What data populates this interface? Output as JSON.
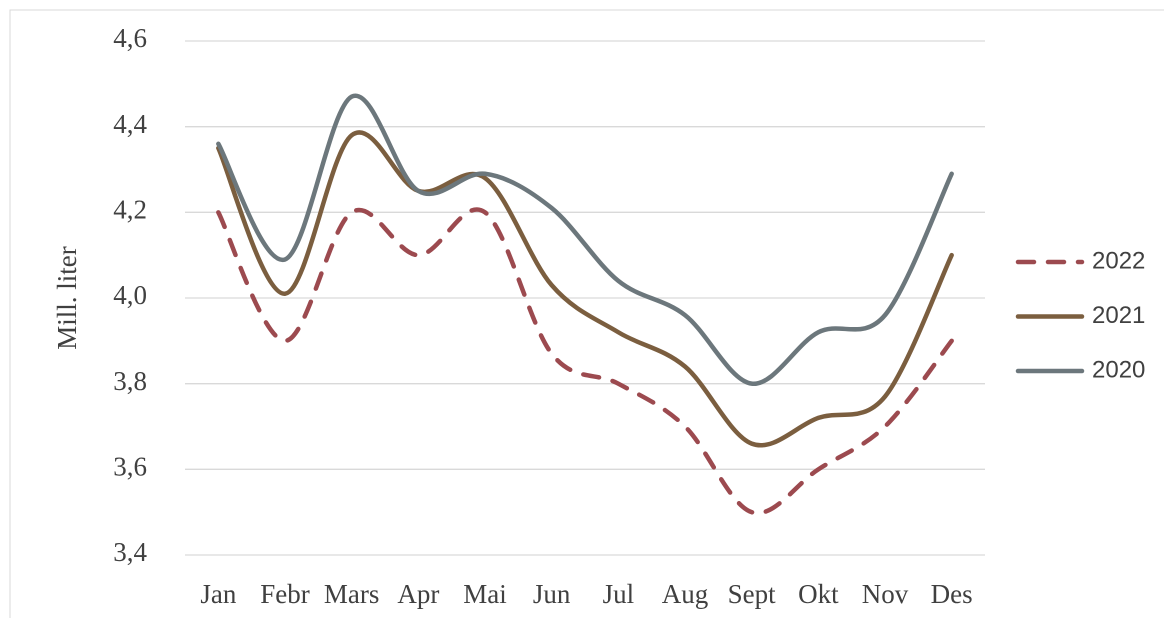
{
  "chart_data": {
    "type": "line",
    "y_label": "Mill. liter",
    "categories": [
      "Jan",
      "Febr",
      "Mars",
      "Apr",
      "Mai",
      "Jun",
      "Jul",
      "Aug",
      "Sept",
      "Okt",
      "Nov",
      "Des"
    ],
    "series": [
      {
        "name": "2022",
        "color": "#9c4a4f",
        "dashed": true,
        "values": [
          4.2,
          3.9,
          4.2,
          4.1,
          4.2,
          3.87,
          3.8,
          3.7,
          3.5,
          3.6,
          3.7,
          3.9
        ]
      },
      {
        "name": "2021",
        "color": "#7b5e3f",
        "dashed": false,
        "values": [
          4.35,
          4.01,
          4.38,
          4.25,
          4.28,
          4.03,
          3.92,
          3.84,
          3.66,
          3.72,
          3.77,
          4.1
        ]
      },
      {
        "name": "2020",
        "color": "#6c777c",
        "dashed": false,
        "values": [
          4.36,
          4.09,
          4.47,
          4.25,
          4.29,
          4.21,
          4.04,
          3.96,
          3.8,
          3.92,
          3.96,
          4.29
        ]
      }
    ],
    "ylim": [
      3.4,
      4.6
    ],
    "yticks": [
      {
        "value": 3.4,
        "label": "3,4"
      },
      {
        "value": 3.6,
        "label": "3,6"
      },
      {
        "value": 3.8,
        "label": "3,8"
      },
      {
        "value": 4.0,
        "label": "4,0"
      },
      {
        "value": 4.2,
        "label": "4,2"
      },
      {
        "value": 4.4,
        "label": "4,4"
      },
      {
        "value": 4.6,
        "label": "4,6"
      }
    ],
    "grid": true,
    "smooth": true,
    "legend": "right"
  }
}
